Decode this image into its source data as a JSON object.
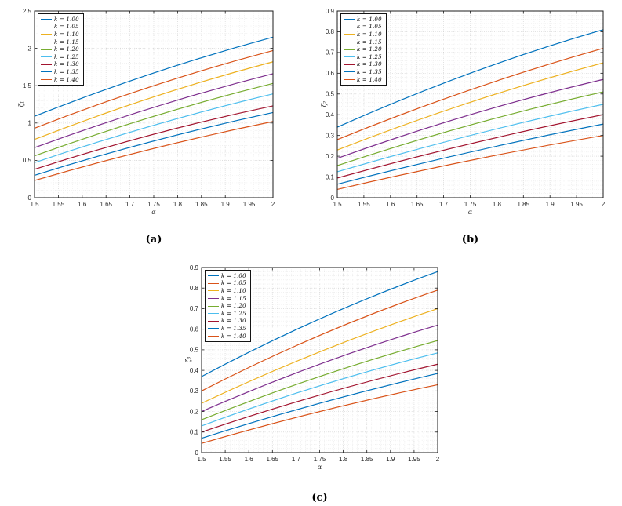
{
  "page": {
    "background": "#ffffff"
  },
  "series_colors": [
    "#0072BD",
    "#D95319",
    "#EDB120",
    "#7E2F8E",
    "#77AC30",
    "#4DBEEE",
    "#A2142F",
    "#0072BD",
    "#D95319"
  ],
  "axis_color": "#262626",
  "grid_major_color": "#cfcfcf",
  "grid_minor_color": "#e7e7e7",
  "legend_labels": [
    "k = 1.00",
    "k = 1.05",
    "k = 1.10",
    "k = 1.15",
    "k = 1.20",
    "k = 1.25",
    "k = 1.30",
    "k = 1.35",
    "k = 1.40"
  ],
  "chart_data": [
    {
      "type": "line",
      "panel": "a",
      "caption": "(a)",
      "title": "",
      "xlabel": "α",
      "ylabel": "ζ₁",
      "grid": true,
      "legend_position": "upper-left",
      "xlim": [
        1.5,
        2.0
      ],
      "ylim": [
        0,
        2.5
      ],
      "xticks": [
        1.5,
        1.55,
        1.6,
        1.65,
        1.7,
        1.75,
        1.8,
        1.85,
        1.9,
        1.95,
        2.0
      ],
      "xtick_labels": [
        "1.5",
        "1.55",
        "1.6",
        "1.65",
        "1.7",
        "1.75",
        "1.8",
        "1.85",
        "1.9",
        "1.95",
        "2"
      ],
      "yticks": [
        0,
        0.5,
        1.0,
        1.5,
        2.0,
        2.5
      ],
      "ytick_labels": [
        "0",
        "0.5",
        "1",
        "1.5",
        "2",
        "2.5"
      ],
      "x_minor_step": 0.01,
      "y_minor_step": 0.1,
      "x": [
        1.5,
        1.75,
        2.0
      ],
      "series": [
        {
          "name": "k = 1.00",
          "values": [
            1.09,
            1.67,
            2.15
          ]
        },
        {
          "name": "k = 1.05",
          "values": [
            0.93,
            1.5,
            1.97
          ]
        },
        {
          "name": "k = 1.10",
          "values": [
            0.78,
            1.35,
            1.82
          ]
        },
        {
          "name": "k = 1.15",
          "values": [
            0.67,
            1.21,
            1.66
          ]
        },
        {
          "name": "k = 1.20",
          "values": [
            0.56,
            1.09,
            1.53
          ]
        },
        {
          "name": "k = 1.25",
          "values": [
            0.47,
            0.97,
            1.39
          ]
        },
        {
          "name": "k = 1.30",
          "values": [
            0.38,
            0.85,
            1.23
          ]
        },
        {
          "name": "k = 1.35",
          "values": [
            0.3,
            0.76,
            1.14
          ]
        },
        {
          "name": "k = 1.40",
          "values": [
            0.23,
            0.66,
            1.02
          ]
        }
      ]
    },
    {
      "type": "line",
      "panel": "b",
      "caption": "(b)",
      "title": "",
      "xlabel": "α",
      "ylabel": "ζ₂",
      "grid": true,
      "legend_position": "upper-left",
      "xlim": [
        1.5,
        2.0
      ],
      "ylim": [
        0,
        0.9
      ],
      "xticks": [
        1.5,
        1.55,
        1.6,
        1.65,
        1.7,
        1.75,
        1.8,
        1.85,
        1.9,
        1.95,
        2.0
      ],
      "xtick_labels": [
        "1.5",
        "1.55",
        "1.6",
        "1.65",
        "1.7",
        "1.75",
        "1.8",
        "1.85",
        "1.9",
        "1.95",
        "2"
      ],
      "yticks": [
        0,
        0.1,
        0.2,
        0.3,
        0.4,
        0.5,
        0.6,
        0.7,
        0.8,
        0.9
      ],
      "ytick_labels": [
        "0",
        "0.1",
        "0.2",
        "0.3",
        "0.4",
        "0.5",
        "0.6",
        "0.7",
        "0.8",
        "0.9"
      ],
      "x_minor_step": 0.01,
      "y_minor_step": 0.02,
      "x": [
        1.5,
        1.75,
        2.0
      ],
      "series": [
        {
          "name": "k = 1.00",
          "values": [
            0.34,
            0.6,
            0.81
          ]
        },
        {
          "name": "k = 1.05",
          "values": [
            0.28,
            0.52,
            0.72
          ]
        },
        {
          "name": "k = 1.10",
          "values": [
            0.23,
            0.46,
            0.65
          ]
        },
        {
          "name": "k = 1.15",
          "values": [
            0.19,
            0.4,
            0.57
          ]
        },
        {
          "name": "k = 1.20",
          "values": [
            0.155,
            0.35,
            0.51
          ]
        },
        {
          "name": "k = 1.25",
          "values": [
            0.125,
            0.3,
            0.45
          ]
        },
        {
          "name": "k = 1.30",
          "values": [
            0.095,
            0.26,
            0.4
          ]
        },
        {
          "name": "k = 1.35",
          "values": [
            0.065,
            0.22,
            0.355
          ]
        },
        {
          "name": "k = 1.40",
          "values": [
            0.04,
            0.18,
            0.3
          ]
        }
      ]
    },
    {
      "type": "line",
      "panel": "c",
      "caption": "(c)",
      "title": "",
      "xlabel": "α",
      "ylabel": "ζ₃",
      "grid": true,
      "legend_position": "upper-left",
      "xlim": [
        1.5,
        2.0
      ],
      "ylim": [
        0,
        0.9
      ],
      "xticks": [
        1.5,
        1.55,
        1.6,
        1.65,
        1.7,
        1.75,
        1.8,
        1.85,
        1.9,
        1.95,
        2.0
      ],
      "xtick_labels": [
        "1.5",
        "1.55",
        "1.6",
        "1.65",
        "1.7",
        "1.75",
        "1.8",
        "1.85",
        "1.9",
        "1.95",
        "2"
      ],
      "yticks": [
        0,
        0.1,
        0.2,
        0.3,
        0.4,
        0.5,
        0.6,
        0.7,
        0.8,
        0.9
      ],
      "ytick_labels": [
        "0",
        "0.1",
        "0.2",
        "0.3",
        "0.4",
        "0.5",
        "0.6",
        "0.7",
        "0.8",
        "0.9"
      ],
      "x_minor_step": 0.01,
      "y_minor_step": 0.02,
      "x": [
        1.5,
        1.75,
        2.0
      ],
      "series": [
        {
          "name": "k = 1.00",
          "values": [
            0.37,
            0.65,
            0.88
          ]
        },
        {
          "name": "k = 1.05",
          "values": [
            0.3,
            0.57,
            0.79
          ]
        },
        {
          "name": "k = 1.10",
          "values": [
            0.24,
            0.49,
            0.7
          ]
        },
        {
          "name": "k = 1.15",
          "values": [
            0.2,
            0.43,
            0.62
          ]
        },
        {
          "name": "k = 1.20",
          "values": [
            0.16,
            0.37,
            0.545
          ]
        },
        {
          "name": "k = 1.25",
          "values": [
            0.13,
            0.325,
            0.485
          ]
        },
        {
          "name": "k = 1.30",
          "values": [
            0.1,
            0.28,
            0.43
          ]
        },
        {
          "name": "k = 1.35",
          "values": [
            0.07,
            0.24,
            0.385
          ]
        },
        {
          "name": "k = 1.40",
          "values": [
            0.045,
            0.2,
            0.33
          ]
        }
      ]
    }
  ]
}
